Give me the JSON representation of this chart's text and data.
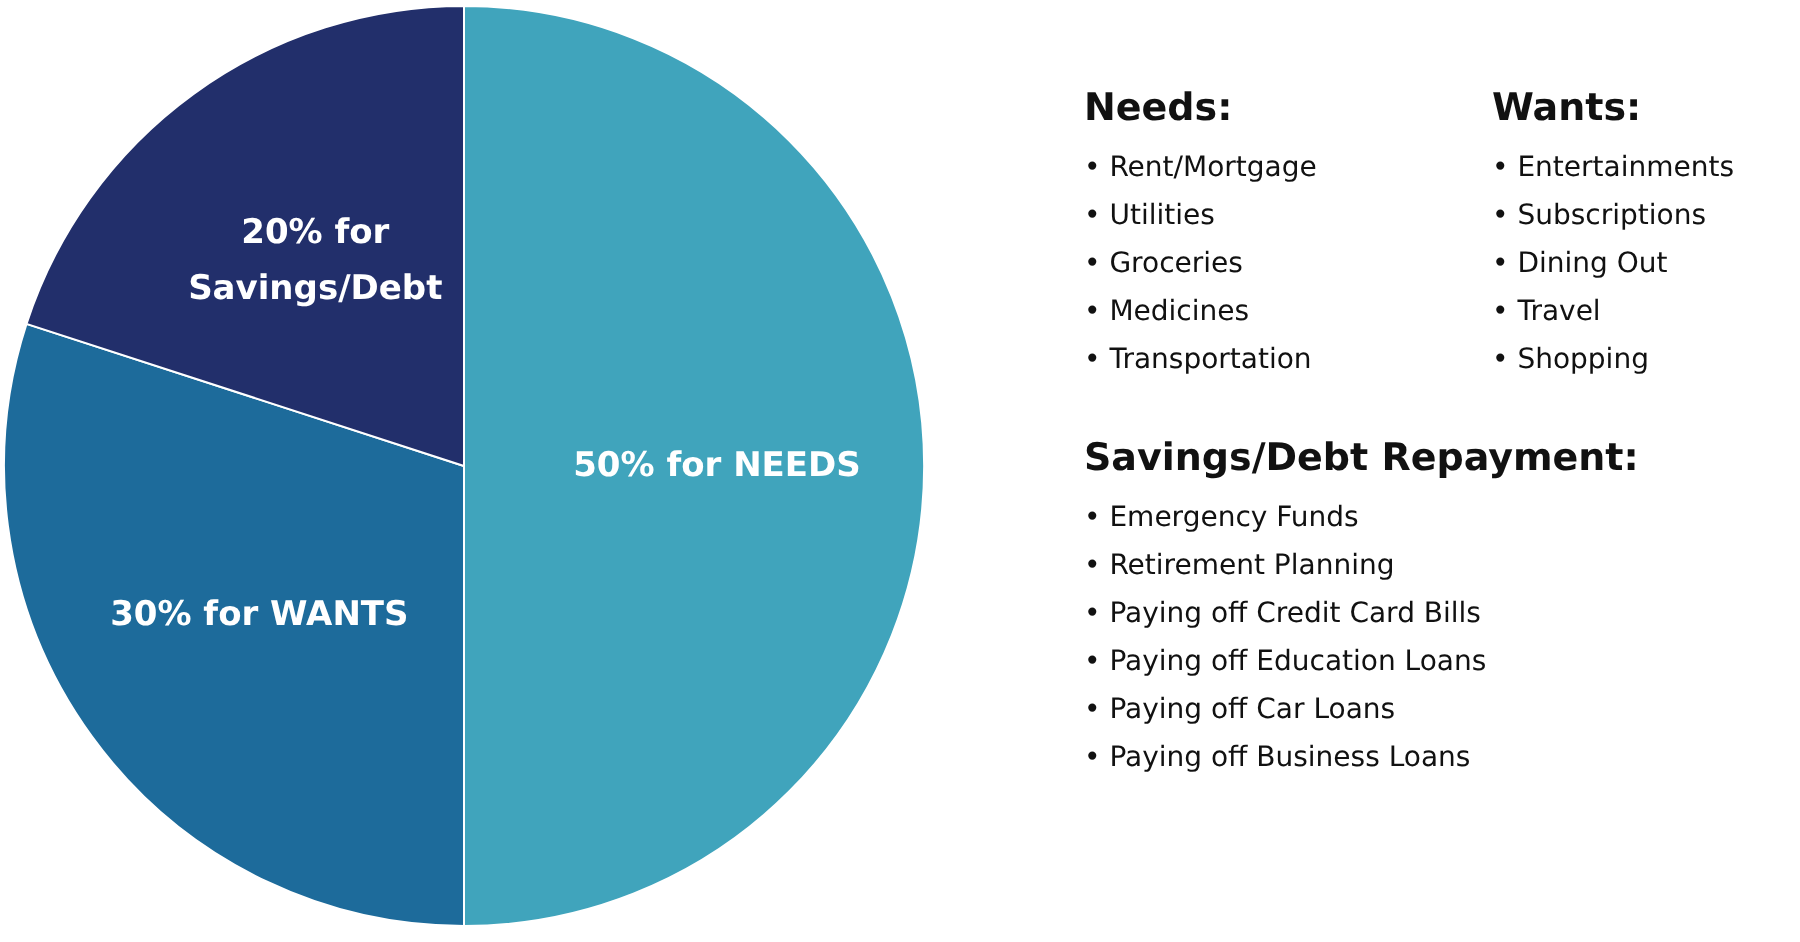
{
  "chart_data": {
    "type": "pie",
    "categories": [
      "50% for NEEDS",
      "30% for WANTS",
      "20% for Savings/Debt"
    ],
    "values": [
      50,
      30,
      20
    ],
    "colors": [
      "#40a4bc",
      "#1d6b9b",
      "#222f6b"
    ],
    "annotations": [
      "Needs:",
      "• Rent/Mortgage",
      "• Utilities",
      "• Groceries",
      "• Medicines",
      "• Transportation",
      "Wants:",
      "• Entertainments",
      "• Subscriptions",
      "• Dining Out",
      "• Travel",
      "• Shopping",
      "Savings/Debt Repayment:",
      "• Emergency Funds",
      "• Retirement Planning",
      "• Paying off Credit Card Bills",
      "• Paying off Education Loans",
      "• Paying off Car Loans",
      "• Paying off Business Loans"
    ]
  }
}
